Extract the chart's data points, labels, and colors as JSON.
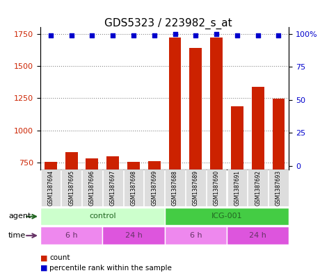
{
  "title": "GDS5323 / 223982_s_at",
  "samples": [
    "GSM1387694",
    "GSM1387695",
    "GSM1387696",
    "GSM1387697",
    "GSM1387698",
    "GSM1387699",
    "GSM1387688",
    "GSM1387689",
    "GSM1387690",
    "GSM1387691",
    "GSM1387692",
    "GSM1387693"
  ],
  "counts": [
    758,
    835,
    785,
    800,
    755,
    765,
    1720,
    1640,
    1720,
    1190,
    1340,
    1245
  ],
  "percentile_display": [
    99,
    99,
    99,
    99,
    99,
    99,
    100,
    99,
    100,
    99,
    99,
    99
  ],
  "ylim_left": [
    700,
    1800
  ],
  "yticks_left": [
    750,
    1000,
    1250,
    1500,
    1750
  ],
  "ylim_right": [
    -2.5,
    105
  ],
  "yticks_right": [
    0,
    25,
    50,
    75,
    100
  ],
  "bar_color": "#CC2200",
  "dot_color": "#0000CC",
  "agent_groups": [
    {
      "label": "control",
      "start": 0,
      "end": 6,
      "color": "#CCFFCC"
    },
    {
      "label": "ICG-001",
      "start": 6,
      "end": 12,
      "color": "#44CC44"
    }
  ],
  "time_groups": [
    {
      "label": "6 h",
      "start": 0,
      "end": 3,
      "color": "#EE88EE"
    },
    {
      "label": "24 h",
      "start": 3,
      "end": 6,
      "color": "#DD55DD"
    },
    {
      "label": "6 h",
      "start": 6,
      "end": 9,
      "color": "#EE88EE"
    },
    {
      "label": "24 h",
      "start": 9,
      "end": 12,
      "color": "#DD55DD"
    }
  ],
  "agent_label": "agent",
  "time_label": "time",
  "legend_count_label": "count",
  "legend_pct_label": "percentile rank within the sample",
  "bar_width": 0.6,
  "grid_color": "#555555",
  "title_fontsize": 11,
  "tick_fontsize": 8,
  "label_fontsize": 8
}
